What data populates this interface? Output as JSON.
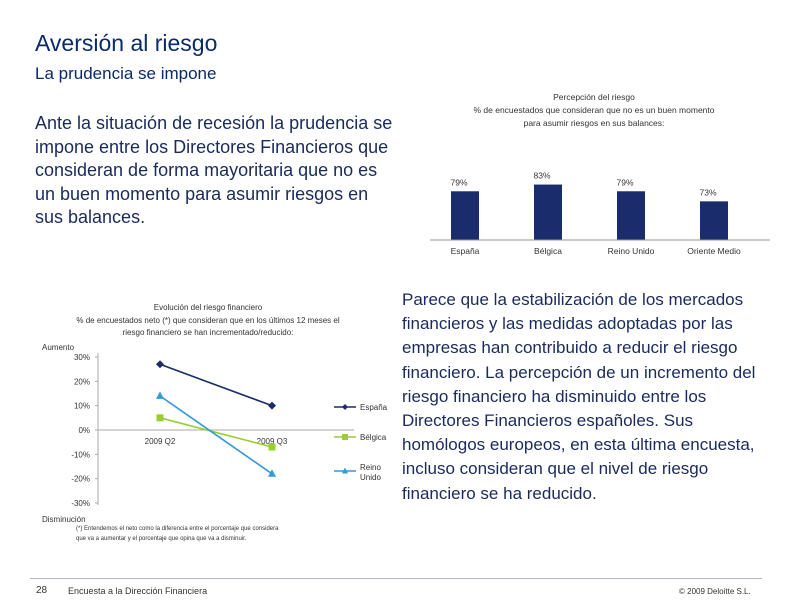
{
  "header": {
    "title": "Aversión al riesgo",
    "subtitle": "La prudencia se impone"
  },
  "intro_text": "Ante la situación de recesión la prudencia se impone entre los Directores Financieros que consideran de forma mayoritaria que no es un buen momento para asumir riesgos en sus balances.",
  "right_text": "Parece que la estabilización de los mercados financieros y las medidas adoptadas por las empresas han contribuido a reducir el riesgo financiero. La percepción de un incremento del riesgo financiero ha disminuido entre los Directores Financieros españoles. Sus homólogos europeos, en esta última encuesta, incluso consideran que el nivel de riesgo financiero se ha reducido.",
  "footer": {
    "page_number": "28",
    "source": "Encuesta a la Dirección Financiera",
    "copyright": "© 2009 Deloitte S.L."
  },
  "colors": {
    "title": "#0a2a6a",
    "bar": "#1a2c6b",
    "espana": "#1a2c6b",
    "belgica": "#9acd32",
    "reino_unido": "#3399dd"
  },
  "chart_data": [
    {
      "type": "bar",
      "title": "Percepción del riesgo",
      "subtitle": "% de encuestados que consideran que no es un buen momento para asumir riesgos en sus balances:",
      "categories": [
        "España",
        "Bélgica",
        "Reino Unido",
        "Oriente Medio"
      ],
      "values": [
        79,
        83,
        79,
        73
      ],
      "value_labels": [
        "79%",
        "83%",
        "79%",
        "73%"
      ],
      "ylim": [
        0,
        100
      ],
      "grid": false
    },
    {
      "type": "line",
      "title": "Evolución del riesgo financiero",
      "subtitle": "% de encuestados neto (*) que consideran que en los últimos 12 meses el riesgo financiero se han incrementado/reducido:",
      "x": [
        "2009 Q2",
        "2009 Q3"
      ],
      "yticks": [
        "30%",
        "20%",
        "10%",
        "0%",
        "-10%",
        "-20%",
        "-30%"
      ],
      "ytick_values": [
        30,
        20,
        10,
        0,
        -10,
        -20,
        -30
      ],
      "ylim": [
        -30,
        30
      ],
      "top_label": "Aumento",
      "bottom_label": "Disminución",
      "series": [
        {
          "name": "España",
          "values": [
            27,
            10
          ]
        },
        {
          "name": "Bélgica",
          "values": [
            5,
            -7
          ]
        },
        {
          "name": "Reino Unido",
          "values": [
            14,
            -18
          ]
        }
      ],
      "legend_position": "right",
      "footnote": "(*) Entendemos el neto como la diferencia entre el porcentaje que considera que va a aumentar y el porcentaje que opina que va a disminuir."
    }
  ]
}
